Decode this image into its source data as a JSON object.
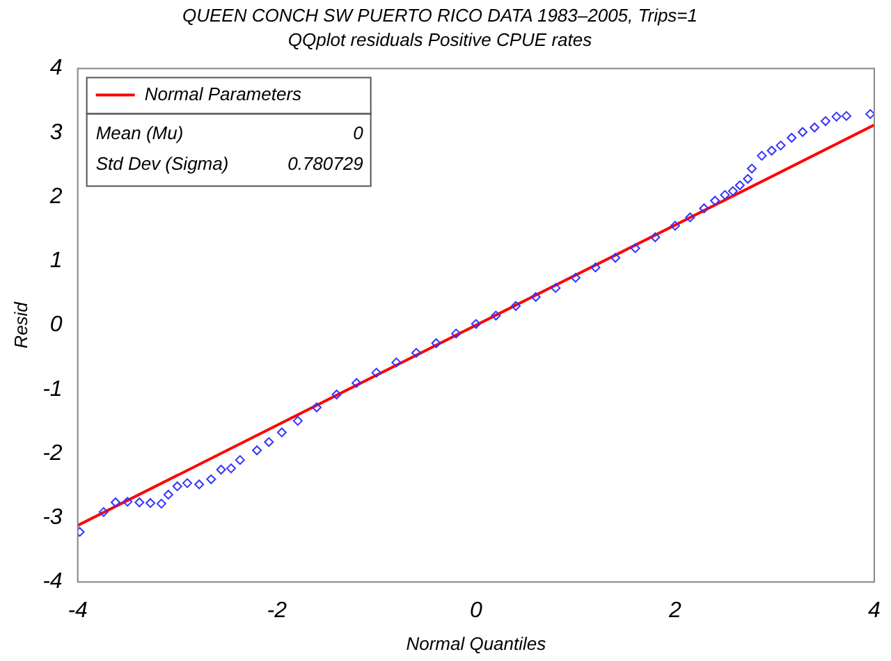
{
  "chart_data": {
    "type": "scatter",
    "title": "QUEEN CONCH SW PUERTO RICO DATA 1983–2005, Trips=1",
    "subtitle": "QQplot residuals Positive CPUE rates",
    "xlabel": "Normal Quantiles",
    "ylabel": "Resid",
    "xlim": [
      -4,
      4
    ],
    "ylim": [
      -4,
      4
    ],
    "xticks": [
      -4,
      -2,
      0,
      2,
      4
    ],
    "yticks": [
      -4,
      -3,
      -2,
      -1,
      0,
      1,
      2,
      3,
      4
    ],
    "grid": false,
    "legend": "top left",
    "marker": "diamond",
    "annotations": [
      "Mean (Mu)",
      "0",
      "Std Dev (Sigma)",
      "0.780729"
    ],
    "series": [
      {
        "color": "#3333ff",
        "x": [
          -3.98,
          -3.74,
          -3.62,
          -3.5,
          -3.38,
          -3.27,
          -3.16,
          -3.09,
          -3.0,
          -2.9,
          -2.78,
          -2.66,
          -2.56,
          -2.46,
          -2.37,
          -2.2,
          -2.08,
          -1.95,
          -1.79,
          -1.6,
          -1.4,
          -1.2,
          -1.0,
          -0.8,
          -0.6,
          -0.4,
          -0.2,
          0,
          0.2,
          0.4,
          0.6,
          0.8,
          1.0,
          1.2,
          1.4,
          1.6,
          1.8,
          2.0,
          2.15,
          2.29,
          2.4,
          2.5,
          2.58,
          2.65,
          2.73,
          2.77,
          2.87,
          2.97,
          3.06,
          3.17,
          3.28,
          3.4,
          3.51,
          3.62,
          3.72,
          3.96
        ],
        "values": [
          -3.22,
          -2.91,
          -2.76,
          -2.75,
          -2.76,
          -2.77,
          -2.78,
          -2.64,
          -2.51,
          -2.46,
          -2.48,
          -2.4,
          -2.25,
          -2.23,
          -2.1,
          -1.95,
          -1.82,
          -1.67,
          -1.49,
          -1.28,
          -1.08,
          -0.9,
          -0.74,
          -0.58,
          -0.43,
          -0.28,
          -0.13,
          0.02,
          0.15,
          0.3,
          0.44,
          0.58,
          0.74,
          0.9,
          1.05,
          1.2,
          1.37,
          1.55,
          1.68,
          1.82,
          1.94,
          2.03,
          2.09,
          2.18,
          2.28,
          2.44,
          2.64,
          2.72,
          2.8,
          2.92,
          3.01,
          3.08,
          3.18,
          3.25,
          3.26,
          3.29
        ]
      },
      {
        "type": "line",
        "name": "Normal Parameters",
        "color": "#ff0000",
        "marker": "none",
        "x": [
          -4,
          4
        ],
        "values": [
          -3.12,
          3.12
        ]
      }
    ]
  }
}
